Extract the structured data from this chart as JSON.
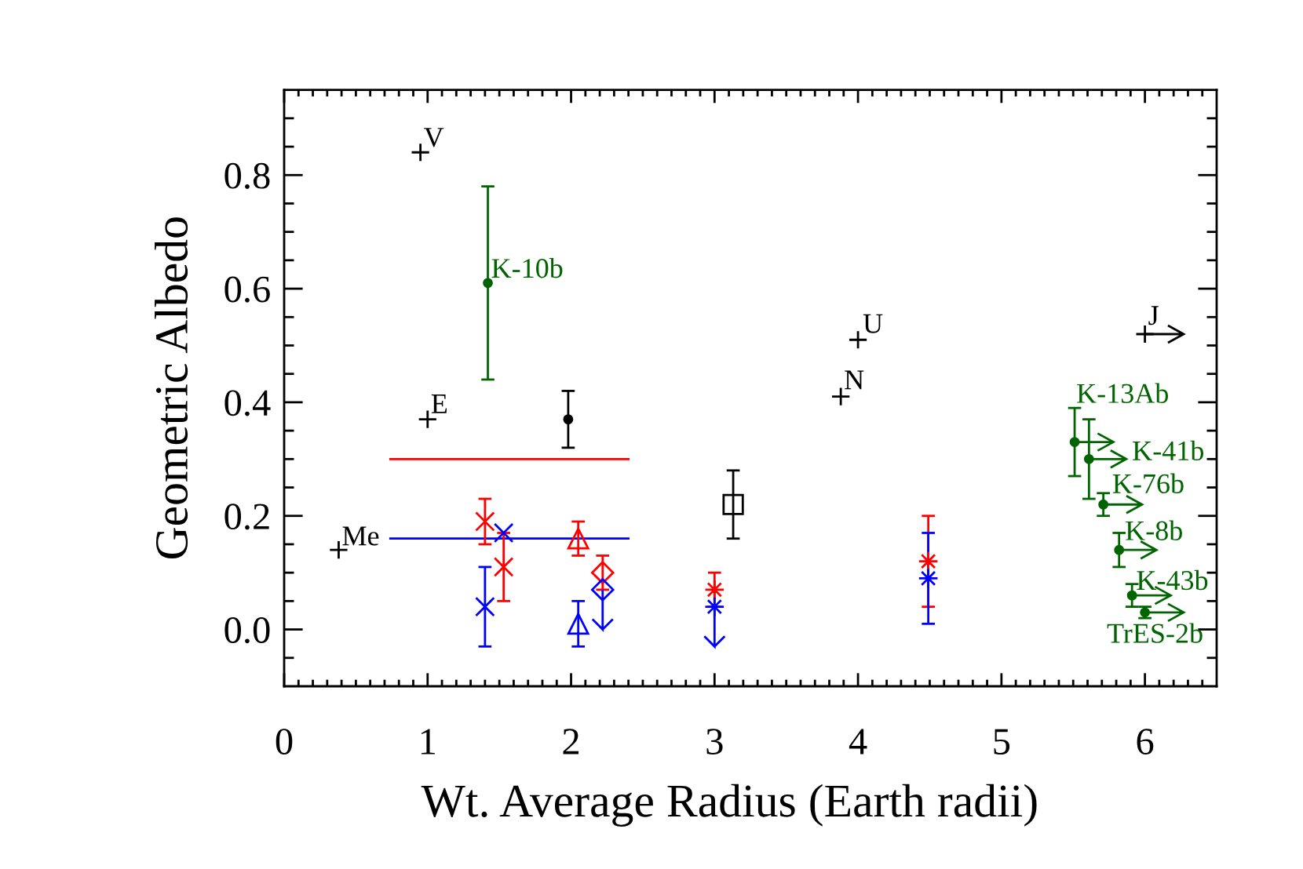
{
  "chart_data": {
    "type": "scatter",
    "xlabel": "Wt. Average Radius (Earth radii)",
    "ylabel": "Geometric Albedo",
    "xlim": [
      0,
      6.5
    ],
    "ylim": [
      -0.1,
      0.95
    ],
    "xticks": [
      0,
      {
        "value": 0.1,
        "label": null
      },
      {
        "value": 0.2,
        "label": null
      },
      {
        "value": 0.3,
        "label": null
      },
      {
        "value": 0.4,
        "label": null
      },
      {
        "value": 0.5,
        "label": null
      },
      {
        "value": 0.6,
        "label": null
      },
      {
        "value": 0.7,
        "label": null
      },
      {
        "value": 0.8,
        "label": null
      },
      {
        "value": 0.9,
        "label": null
      },
      1,
      {
        "value": 1.1,
        "label": null
      },
      {
        "value": 1.2,
        "label": null
      },
      {
        "value": 1.3,
        "label": null
      },
      {
        "value": 1.4,
        "label": null
      },
      {
        "value": 1.5,
        "label": null
      },
      {
        "value": 1.6,
        "label": null
      },
      {
        "value": 1.7,
        "label": null
      },
      {
        "value": 1.8,
        "label": null
      },
      {
        "value": 1.9,
        "label": null
      },
      2,
      {
        "value": 2.1,
        "label": null
      },
      {
        "value": 2.2,
        "label": null
      },
      {
        "value": 2.3,
        "label": null
      },
      {
        "value": 2.4,
        "label": null
      },
      {
        "value": 2.5,
        "label": null
      },
      {
        "value": 2.6,
        "label": null
      },
      {
        "value": 2.7,
        "label": null
      },
      {
        "value": 2.8,
        "label": null
      },
      {
        "value": 2.9,
        "label": null
      },
      3,
      {
        "value": 3.1,
        "label": null
      },
      {
        "value": 3.2,
        "label": null
      },
      {
        "value": 3.3,
        "label": null
      },
      {
        "value": 3.4,
        "label": null
      },
      {
        "value": 3.5,
        "label": null
      },
      {
        "value": 3.6,
        "label": null
      },
      {
        "value": 3.7,
        "label": null
      },
      {
        "value": 3.8,
        "label": null
      },
      {
        "value": 3.9,
        "label": null
      },
      4,
      {
        "value": 4.1,
        "label": null
      },
      {
        "value": 4.2,
        "label": null
      },
      {
        "value": 4.3,
        "label": null
      },
      {
        "value": 4.4,
        "label": null
      },
      {
        "value": 4.5,
        "label": null
      },
      {
        "value": 4.6,
        "label": null
      },
      {
        "value": 4.7,
        "label": null
      },
      {
        "value": 4.8,
        "label": null
      },
      {
        "value": 4.9,
        "label": null
      },
      5,
      {
        "value": 5.1,
        "label": null
      },
      {
        "value": 5.2,
        "label": null
      },
      {
        "value": 5.3,
        "label": null
      },
      {
        "value": 5.4,
        "label": null
      },
      {
        "value": 5.5,
        "label": null
      },
      {
        "value": 5.6,
        "label": null
      },
      {
        "value": 5.7,
        "label": null
      },
      {
        "value": 5.8,
        "label": null
      },
      {
        "value": 5.9,
        "label": null
      },
      6,
      {
        "value": 6.1,
        "label": null
      },
      {
        "value": 6.2,
        "label": null
      },
      {
        "value": 6.3,
        "label": null
      },
      {
        "value": 6.4,
        "label": null
      }
    ],
    "yticks": [
      {
        "value": -0.05,
        "label": null
      },
      {
        "value": 0.0,
        "label": "0.0"
      },
      {
        "value": 0.05,
        "label": null
      },
      {
        "value": 0.1,
        "label": null
      },
      {
        "value": 0.15,
        "label": null
      },
      {
        "value": 0.2,
        "label": "0.2"
      },
      {
        "value": 0.25,
        "label": null
      },
      {
        "value": 0.3,
        "label": null
      },
      {
        "value": 0.35,
        "label": null
      },
      {
        "value": 0.4,
        "label": "0.4"
      },
      {
        "value": 0.45,
        "label": null
      },
      {
        "value": 0.5,
        "label": null
      },
      {
        "value": 0.55,
        "label": null
      },
      {
        "value": 0.6,
        "label": "0.6"
      },
      {
        "value": 0.65,
        "label": null
      },
      {
        "value": 0.7,
        "label": null
      },
      {
        "value": 0.75,
        "label": null
      },
      {
        "value": 0.8,
        "label": "0.8"
      },
      {
        "value": 0.85,
        "label": null
      },
      {
        "value": 0.9,
        "label": null
      }
    ],
    "series": [
      {
        "type": "line",
        "color": "#ff0000",
        "x": [
          0.74,
          2.4
        ],
        "values": [
          0.3,
          0.3
        ]
      },
      {
        "type": "line",
        "color": "#0000ff",
        "x": [
          0.74,
          2.4
        ],
        "values": [
          0.16,
          0.16
        ]
      },
      {
        "marker": "cross",
        "color": "#000000",
        "x": [
          0.38,
          0.95,
          1.0,
          3.88,
          4.0,
          6.0
        ],
        "values": [
          0.14,
          0.84,
          0.37,
          0.41,
          0.51,
          0.52
        ],
        "xerrors": [
          null,
          null,
          null,
          null,
          null,
          [
            6.0,
            6.27
          ]
        ]
      },
      {
        "marker": "circle",
        "color": "#006400",
        "x": [
          1.42,
          5.51,
          5.61,
          5.71,
          5.82,
          5.91,
          6.0
        ],
        "values": [
          0.61,
          0.33,
          0.3,
          0.22,
          0.14,
          0.06,
          0.03
        ],
        "errors": [
          0.17,
          0.06,
          0.07,
          0.02,
          0.03,
          0.02,
          0.01
        ],
        "xerrors": [
          null,
          [
            5.51,
            5.78
          ],
          [
            5.61,
            5.87
          ],
          [
            5.71,
            5.98
          ],
          [
            5.82,
            6.08
          ],
          [
            5.91,
            6.18
          ],
          [
            6.0,
            6.27
          ]
        ]
      },
      {
        "marker": "circle",
        "color": "#000000",
        "x": [
          1.98
        ],
        "values": [
          0.37
        ],
        "errors": [
          0.05
        ]
      },
      {
        "marker": "square",
        "color": "#000000",
        "x": [
          3.13
        ],
        "values": [
          0.22
        ],
        "errors": [
          0.06
        ]
      },
      {
        "marker": "x",
        "color": "#ff0000",
        "x": [
          1.4,
          1.53
        ],
        "values": [
          0.19,
          0.11
        ],
        "errors": [
          0.04,
          0.06
        ]
      },
      {
        "marker": "triangle",
        "color": "#ff0000",
        "x": [
          2.05
        ],
        "values": [
          0.16
        ],
        "errors": [
          0.03
        ]
      },
      {
        "marker": "diamond",
        "color": "#ff0000",
        "x": [
          2.22
        ],
        "values": [
          0.1
        ],
        "errors": [
          0.03
        ]
      },
      {
        "marker": "star",
        "color": "#ff0000",
        "x": [
          3.0,
          4.49
        ],
        "values": [
          0.07,
          0.12
        ],
        "errors": [
          0.03,
          0.08
        ]
      },
      {
        "marker": "x",
        "color": "#0000ff",
        "x": [
          1.4,
          1.53
        ],
        "values": [
          0.04,
          0.17
        ],
        "errors": [
          0.07,
          null
        ]
      },
      {
        "marker": "triangle",
        "color": "#0000ff",
        "x": [
          2.05
        ],
        "values": [
          0.01
        ],
        "errors": [
          0.04
        ]
      },
      {
        "marker": "diamond",
        "color": "#0000ff",
        "x": [
          2.22
        ],
        "values": [
          0.07
        ],
        "errors": [
          [
            0.0,
            0.07
          ]
        ]
      },
      {
        "marker": "star",
        "color": "#0000ff",
        "x": [
          3.0,
          4.49
        ],
        "values": [
          0.04,
          0.09
        ],
        "errors": [
          [
            -0.03,
            0.04
          ],
          0.08
        ]
      }
    ],
    "annotations": [
      {
        "text": "Me",
        "x": 0.38,
        "y": 0.14
      },
      {
        "text": "V",
        "x": 0.95,
        "y": 0.84
      },
      {
        "text": "E",
        "x": 1.0,
        "y": 0.37
      },
      {
        "text": "N",
        "x": 3.88,
        "y": 0.41
      },
      {
        "text": "U",
        "x": 4.0,
        "y": 0.51
      },
      {
        "text": "J",
        "x": 6.0,
        "y": 0.52
      },
      {
        "text": "K-10b",
        "x": 1.42,
        "y": 0.61
      },
      {
        "text": "K-13Ab",
        "x": 5.51,
        "y": 0.33
      },
      {
        "text": "K-41b",
        "x": 5.61,
        "y": 0.3
      },
      {
        "text": "K-76b",
        "x": 5.71,
        "y": 0.22
      },
      {
        "text": "K-8b",
        "x": 5.82,
        "y": 0.14
      },
      {
        "text": "K-43b",
        "x": 5.91,
        "y": 0.06
      },
      {
        "text": "TrES-2b",
        "x": 6.0,
        "y": 0.03
      }
    ]
  }
}
